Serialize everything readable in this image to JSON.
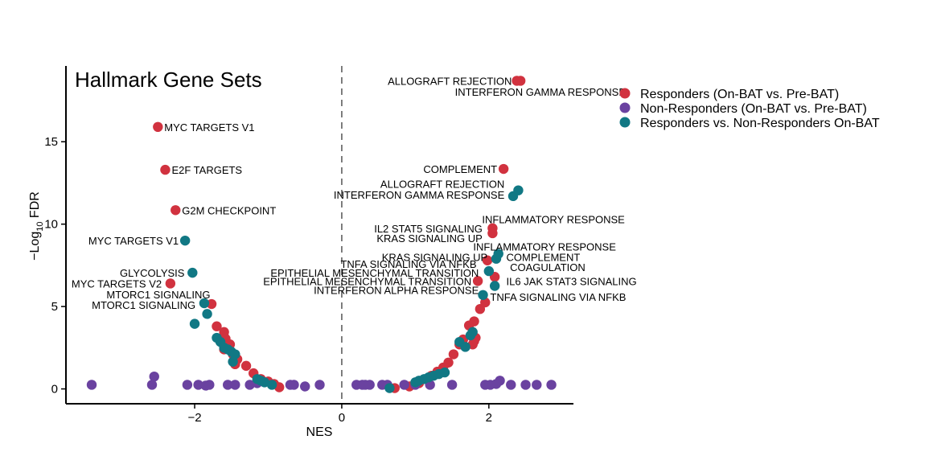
{
  "chart_data": {
    "type": "scatter",
    "title": "Hallmark Gene Sets",
    "xlabel": "NES",
    "ylabel": "-Log10 FDR",
    "ylabel_parts": {
      "prefix": "−Log",
      "sub": "10",
      "suffix": " FDR"
    },
    "xlim": [
      -3.75,
      3.15
    ],
    "ylim": [
      -0.9,
      19.6
    ],
    "xticks": [
      -2,
      0,
      2
    ],
    "yticks": [
      0,
      5,
      10,
      15
    ],
    "vline_x": 0,
    "colors": {
      "responders": "#d1323f",
      "non_responders": "#6a42a0",
      "resp_vs_nonresp": "#117884"
    },
    "legend_position": "top-right",
    "series": [
      {
        "key": "responders",
        "name": "Responders (On-BAT vs. Pre-BAT)",
        "points": [
          [
            -2.5,
            15.9
          ],
          [
            -2.4,
            13.3
          ],
          [
            -2.26,
            10.85
          ],
          [
            -2.33,
            6.4
          ],
          [
            -1.77,
            5.15
          ],
          [
            -1.7,
            3.8
          ],
          [
            -1.6,
            3.45
          ],
          [
            -1.58,
            3.05
          ],
          [
            -1.52,
            2.7
          ],
          [
            -1.6,
            2.4
          ],
          [
            -1.48,
            2.1
          ],
          [
            -1.42,
            1.8
          ],
          [
            -1.45,
            1.5
          ],
          [
            -1.3,
            1.4
          ],
          [
            -1.2,
            0.95
          ],
          [
            -1.1,
            0.6
          ],
          [
            -1.0,
            0.45
          ],
          [
            -0.92,
            0.3
          ],
          [
            -0.85,
            0.1
          ],
          [
            0.72,
            0.05
          ],
          [
            0.92,
            0.15
          ],
          [
            1.05,
            0.35
          ],
          [
            1.15,
            0.6
          ],
          [
            1.22,
            0.8
          ],
          [
            1.3,
            1.05
          ],
          [
            1.38,
            1.3
          ],
          [
            1.45,
            1.6
          ],
          [
            1.52,
            2.1
          ],
          [
            1.6,
            2.7
          ],
          [
            1.65,
            3.0
          ],
          [
            1.73,
            3.85
          ],
          [
            1.8,
            4.1
          ],
          [
            1.88,
            4.85
          ],
          [
            1.78,
            2.7
          ],
          [
            1.82,
            3.1
          ],
          [
            1.8,
            2.9
          ],
          [
            1.95,
            5.25
          ],
          [
            1.85,
            6.55
          ],
          [
            1.98,
            7.8
          ],
          [
            2.08,
            6.8
          ],
          [
            2.05,
            9.75
          ],
          [
            2.05,
            9.45
          ],
          [
            2.2,
            13.35
          ],
          [
            2.38,
            18.7
          ],
          [
            2.43,
            18.7
          ]
        ]
      },
      {
        "key": "non_responders",
        "name": "Non-Responders (On-BAT vs. Pre-BAT)",
        "points": [
          [
            -3.4,
            0.25
          ],
          [
            -2.58,
            0.25
          ],
          [
            -2.55,
            0.75
          ],
          [
            -2.1,
            0.25
          ],
          [
            -1.95,
            0.25
          ],
          [
            -1.85,
            0.2
          ],
          [
            -1.8,
            0.25
          ],
          [
            -1.55,
            0.25
          ],
          [
            -1.45,
            0.25
          ],
          [
            -1.25,
            0.25
          ],
          [
            -1.15,
            0.35
          ],
          [
            -0.7,
            0.25
          ],
          [
            -0.65,
            0.25
          ],
          [
            -0.5,
            0.15
          ],
          [
            -0.3,
            0.25
          ],
          [
            0.2,
            0.25
          ],
          [
            0.28,
            0.25
          ],
          [
            0.32,
            0.25
          ],
          [
            0.38,
            0.25
          ],
          [
            0.55,
            0.25
          ],
          [
            0.62,
            0.25
          ],
          [
            0.85,
            0.25
          ],
          [
            1.0,
            0.25
          ],
          [
            1.2,
            0.25
          ],
          [
            1.5,
            0.25
          ],
          [
            1.95,
            0.25
          ],
          [
            2.02,
            0.25
          ],
          [
            2.1,
            0.3
          ],
          [
            2.15,
            0.5
          ],
          [
            2.3,
            0.25
          ],
          [
            2.5,
            0.25
          ],
          [
            2.65,
            0.25
          ],
          [
            2.85,
            0.25
          ]
        ]
      },
      {
        "key": "resp_vs_nonresp",
        "name": "Responders vs. Non-Responders On-BAT",
        "points": [
          [
            -2.13,
            9.0
          ],
          [
            -2.03,
            7.05
          ],
          [
            -1.87,
            5.2
          ],
          [
            -2.0,
            3.95
          ],
          [
            -1.83,
            4.55
          ],
          [
            -1.7,
            3.1
          ],
          [
            -1.65,
            2.85
          ],
          [
            -1.6,
            2.5
          ],
          [
            -1.55,
            2.4
          ],
          [
            -1.5,
            2.25
          ],
          [
            -1.45,
            2.1
          ],
          [
            -1.48,
            1.65
          ],
          [
            -1.15,
            0.6
          ],
          [
            -1.1,
            0.5
          ],
          [
            -1.05,
            0.4
          ],
          [
            -0.95,
            0.25
          ],
          [
            0.65,
            0.05
          ],
          [
            1.0,
            0.4
          ],
          [
            1.05,
            0.5
          ],
          [
            1.12,
            0.6
          ],
          [
            1.18,
            0.7
          ],
          [
            1.25,
            0.8
          ],
          [
            1.32,
            0.9
          ],
          [
            1.4,
            1.0
          ],
          [
            1.6,
            2.85
          ],
          [
            1.68,
            2.55
          ],
          [
            1.75,
            3.25
          ],
          [
            1.78,
            3.45
          ],
          [
            1.92,
            5.7
          ],
          [
            2.0,
            7.15
          ],
          [
            2.08,
            6.25
          ],
          [
            2.1,
            7.9
          ],
          [
            2.13,
            8.2
          ],
          [
            2.33,
            11.7
          ],
          [
            2.4,
            12.05
          ]
        ]
      }
    ],
    "annotations": [
      {
        "text": "ALLOGRAFT REJECTION",
        "x": 2.4,
        "y": 18.7,
        "anchor": "end"
      },
      {
        "text": "INTERFERON GAMMA RESPONSE",
        "x": 2.7,
        "y": 18.05,
        "anchor": "middle"
      },
      {
        "text": "MYC TARGETS V1",
        "x": -2.5,
        "y": 15.9,
        "anchor": "start"
      },
      {
        "text": "E2F TARGETS",
        "x": -2.4,
        "y": 13.3,
        "anchor": "start"
      },
      {
        "text": "COMPLEMENT",
        "x": 2.2,
        "y": 13.35,
        "anchor": "end"
      },
      {
        "text": "ALLOGRAFT REJECTION",
        "x": 2.3,
        "y": 12.45,
        "anchor": "end"
      },
      {
        "text": "INTERFERON GAMMA RESPONSE",
        "x": 2.3,
        "y": 11.8,
        "anchor": "end"
      },
      {
        "text": "G2M CHECKPOINT",
        "x": -2.26,
        "y": 10.85,
        "anchor": "start"
      },
      {
        "text": "INFLAMMATORY RESPONSE",
        "x": 1.82,
        "y": 10.3,
        "anchor": "start"
      },
      {
        "text": "IL2 STAT5 SIGNALING",
        "x": 2.0,
        "y": 9.75,
        "anchor": "end"
      },
      {
        "text": "KRAS SIGNALING UP",
        "x": 2.0,
        "y": 9.15,
        "anchor": "end"
      },
      {
        "text": "MYC TARGETS V1",
        "x": -2.13,
        "y": 9.0,
        "anchor": "end"
      },
      {
        "text": "INFLAMMATORY RESPONSE",
        "x": 1.7,
        "y": 8.65,
        "anchor": "start"
      },
      {
        "text": "KRAS SIGNALING UP",
        "x": 2.07,
        "y": 8.0,
        "anchor": "end"
      },
      {
        "text": "COMPLEMENT",
        "x": 2.15,
        "y": 8.0,
        "anchor": "start"
      },
      {
        "text": "TNFA SIGNALING VIA NFKB",
        "x": 1.92,
        "y": 7.6,
        "anchor": "end"
      },
      {
        "text": "COAGULATION",
        "x": 2.2,
        "y": 7.4,
        "anchor": "start"
      },
      {
        "text": "GLYCOLYSIS",
        "x": -2.05,
        "y": 7.05,
        "anchor": "end"
      },
      {
        "text": "EPITHELIAL MESENCHYMAL TRANSITION",
        "x": 1.95,
        "y": 7.05,
        "anchor": "end"
      },
      {
        "text": "EPITHELIAL MESENCHYMAL TRANSITION",
        "x": 1.85,
        "y": 6.55,
        "anchor": "end"
      },
      {
        "text": "IL6 JAK STAT3 SIGNALING",
        "x": 2.15,
        "y": 6.55,
        "anchor": "start"
      },
      {
        "text": "MYC TARGETS V2",
        "x": -2.36,
        "y": 6.4,
        "anchor": "end"
      },
      {
        "text": "INTERFERON ALPHA RESPONSE",
        "x": 1.95,
        "y": 6.0,
        "anchor": "end"
      },
      {
        "text": "MTORC1 SIGNALING",
        "x": -1.7,
        "y": 5.75,
        "anchor": "end"
      },
      {
        "text": "TNFA SIGNALING VIA NFKB",
        "x": 1.93,
        "y": 5.6,
        "anchor": "start"
      },
      {
        "text": "MTORC1 SIGNALING",
        "x": -1.9,
        "y": 5.1,
        "anchor": "end"
      }
    ]
  }
}
